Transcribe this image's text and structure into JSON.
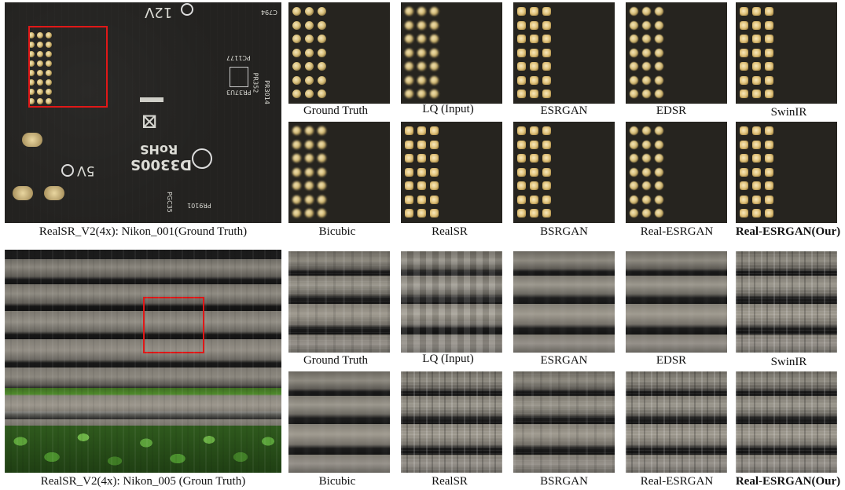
{
  "figure": {
    "row1": {
      "main_caption": "RealSR_V2(4x): Nikon_001(Ground Truth)",
      "pcb_labels": {
        "v12": "12V",
        "v5": "5V",
        "rohs": "RoHS",
        "part": "D3300S",
        "pc1177": "PC1177",
        "pr3": "PR3014",
        "pr352": "PR352",
        "pr37u3": "PR37U3",
        "pgc": "PGC35",
        "pr9101": "PR9101",
        "c794": "C794"
      },
      "crops_top": [
        "Ground Truth",
        "LQ (Input)",
        "ESRGAN",
        "EDSR",
        "SwinIR"
      ],
      "crops_bottom": [
        "Bicubic",
        "RealSR",
        "BSRGAN",
        "Real-ESRGAN",
        "Real-ESRGAN(Our)"
      ]
    },
    "row2": {
      "main_caption": "RealSR_V2(4x): Nikon_005 (Groun Truth)",
      "crops_top": [
        "Ground Truth",
        "LQ (Input)",
        "ESRGAN",
        "EDSR",
        "SwinIR"
      ],
      "crops_bottom": [
        "Bicubic",
        "RealSR",
        "BSRGAN",
        "Real-ESRGAN",
        "Real-ESRGAN(Our)"
      ]
    },
    "colors": {
      "highlight_box": "#e01818"
    }
  }
}
